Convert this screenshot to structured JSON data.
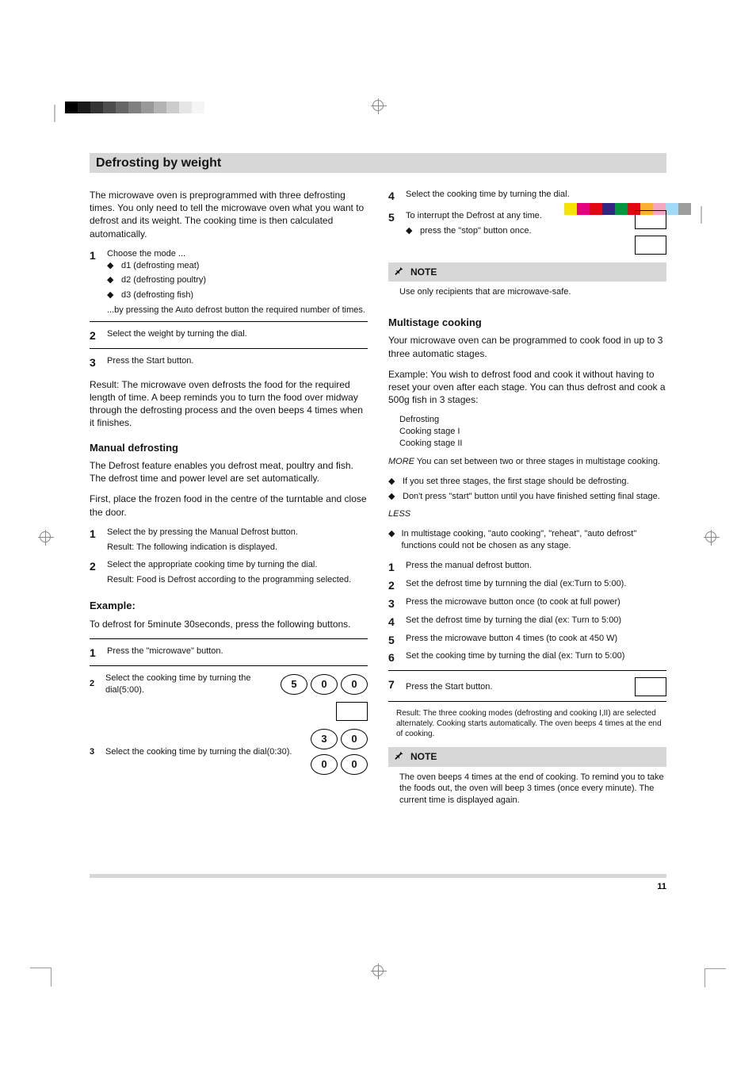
{
  "printmarks": {
    "gray_steps": [
      "#000000",
      "#1a1a1a",
      "#333333",
      "#4d4d4d",
      "#666666",
      "#808080",
      "#999999",
      "#b3b3b3",
      "#cccccc",
      "#e6e6e6",
      "#f5f5f5",
      "#ffffff"
    ],
    "color_steps": [
      "#f4e400",
      "#e5007e",
      "#e30613",
      "#312783",
      "#009640",
      "#e30613",
      "#f9b233",
      "#f3a6c1",
      "#a1daf8",
      "#9d9d9c"
    ]
  },
  "title": "Defrosting by weight",
  "left": {
    "intro": "The microwave oven is preprogrammed with three defrosting times. You only need to tell the microwave oven what you want to defrost and its weight. The cooking time is then calculated automatically.",
    "step1_label": "Choose the mode ...",
    "step1_d1": "d1 (defrosting meat)",
    "step1_d2": "d2 (defrosting poultry)",
    "step1_d3": "d3 (defrosting fish)",
    "step1_press": "...by pressing the Auto defrost button the required number of times.",
    "step2_label": "Select the weight by turning the dial.",
    "step3_label": "Press the Start button.",
    "step1_key": "",
    "step2_key": "",
    "step3_key": "",
    "result_text": "Result: The microwave oven defrosts the food for the required length of time. A beep reminds you to turn the food over midway through the defrosting process and the oven beeps 4 times when it finishes.",
    "manual_h": "Manual defrosting",
    "manual_p1": "The Defrost feature enables you defrost meat, poultry and fish. The defrost time and power level are set automatically.",
    "manual_p2": "First, place the frozen food in the centre of the turntable and close the door.",
    "m_step1": "Select the by pressing the Manual Defrost button.",
    "m_step1_result": "Result: The following indication is displayed.",
    "m_step2": "Select the appropriate cooking time by turning the dial.",
    "m_step2_result": "Result: Food is Defrost according to the programming selected.",
    "m_key": "",
    "example_h": "Example:",
    "example_intro": "To defrost for 5minute 30seconds, press the following buttons.",
    "ex1_label": "Press the \"microwave\" button.",
    "ex1_digits": [
      "5",
      "0",
      "0"
    ],
    "ex2_label": "Select the cooking time by turning the dial(5:00).",
    "ex2_key": "",
    "ex3_label": "Select the cooking time by turning the dial(0:30).",
    "ex3a_digits": [
      "3",
      "0"
    ],
    "ex3b_digits": [
      "0",
      "0"
    ]
  },
  "right": {
    "step4_label": "Select the cooking time by turning the dial.",
    "step5_label": "To interrupt the Defrost at any time.",
    "step5_press": "press the \"stop\" button once.",
    "step5_key1": "",
    "step5_key2": "",
    "note1_head": "NOTE",
    "note1_body": "Use only recipients that are microwave-safe.",
    "multi_h": "Multistage cooking",
    "multi_p1": "Your microwave oven can be programmed to cook food in up to 3 three automatic stages.",
    "multi_example": "Example: You wish to defrost food and cook it without having to reset your oven after each stage. You can thus defrost and cook a 500g fish in 3 stages:",
    "multi_s1": "Defrosting",
    "multi_s2": "Cooking stage I",
    "multi_s3": "Cooking stage II",
    "multi_more": "You can set between two or three stages in multistage cooking.",
    "multi_more_em": "MORE",
    "multi_more_b1": "If you set three stages, the first stage should be defrosting.",
    "multi_more_b2": "Don't press \"start\" button until you have finished setting final stage.",
    "multi_less_em": "LESS",
    "multi_less_b1": "In multistage cooking, \"auto cooking\", \"reheat\", \"auto defrost\" functions could not be chosen as any stage.",
    "ms_step1": "Press the manual defrost button.",
    "ms_step2": "Set the defrost time by turnning the dial (ex:Turn to 5:00).",
    "ms_step3": "Press the microwave button once (to cook at full power)",
    "ms_step4": "Set the defrost time by turning the dial (ex: Turn to 5:00)",
    "ms_step5": "Press the microwave button 4 times (to cook at 450 W)",
    "ms_step6": "Set the cooking time by turning the dial (ex: Turn to 5:00)",
    "ms_step7": "Press the Start button.",
    "ms_key7": "",
    "ms_result": "Result: The three cooking modes (defrosting and cooking I,II) are selected alternately. Cooking starts automatically. The oven beeps 4 times at the end of cooking.",
    "note2_head": "NOTE",
    "note2_body": "The oven beeps 4 times at the end of cooking. To remind you to take the foods out, the oven will beep 3 times (once every minute). The current time is displayed again."
  },
  "page_number": "11",
  "colors": {
    "title_bg": "#d7d7d7",
    "text": "#151515",
    "rule": "#000000"
  }
}
